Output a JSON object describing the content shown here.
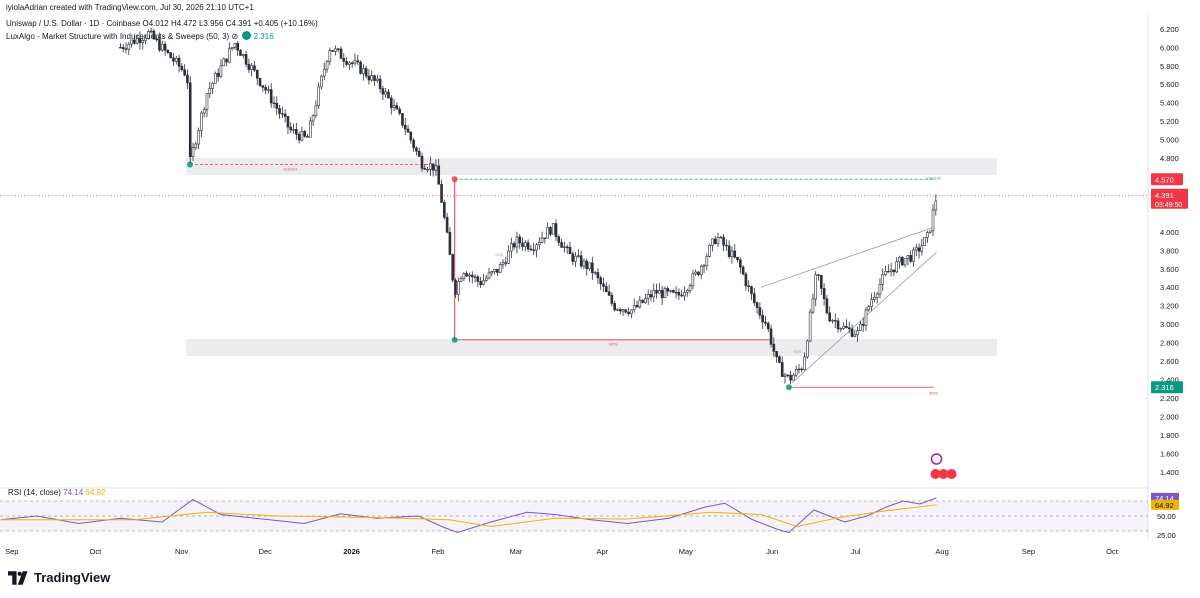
{
  "header": {
    "caption": "iyiolaAdrian created with TradingView.com, Jul 30, 2026 21:10 UTC+1",
    "symbol_line": "Uniswap / U.S. Dollar · 1D · Coinbase  O4.012  H4.472  L3.956  C4.391  +0.405 (+10.16%)",
    "indicator_line": "LuxAlgo - Market Structure with Inducements & Sweeps (50, 3)",
    "indicator_gear": "⊘",
    "indicator_value": "2.316"
  },
  "chart_data": [
    {
      "type": "candlestick",
      "title": "Uniswap / U.S. Dollar · 1D · Coinbase",
      "x_axis_ticks": [
        "Sep",
        "Oct",
        "Nov",
        "Dec",
        "2026",
        "Feb",
        "Mar",
        "Apr",
        "May",
        "Jun",
        "Jul",
        "Aug",
        "Sep",
        "Oct"
      ],
      "y_axis_ticks": [
        "6.200",
        "6.000",
        "5.800",
        "5.600",
        "5.400",
        "5.200",
        "5.000",
        "4.800",
        "4.000",
        "3.800",
        "3.600",
        "3.400",
        "3.200",
        "3.000",
        "2.800",
        "2.600",
        "2.400",
        "2.200",
        "2.000",
        "1.800",
        "1.600",
        "1.400"
      ],
      "ylim": [
        1.3,
        6.35
      ],
      "grid": false,
      "colors": {
        "up": "#089981",
        "down": "#131722",
        "candle": "#2a2e39"
      },
      "price_path": [
        [
          "2025-10-10",
          6.0
        ],
        [
          "2025-10-20",
          6.15
        ],
        [
          "2025-11-03",
          5.7
        ],
        [
          "2025-11-04",
          4.75
        ],
        [
          "2025-11-10",
          5.5
        ],
        [
          "2025-11-20",
          6.05
        ],
        [
          "2025-12-01",
          5.55
        ],
        [
          "2025-12-10",
          5.1
        ],
        [
          "2025-12-16",
          5.0
        ],
        [
          "2025-12-24",
          6.0
        ],
        [
          "2026-01-05",
          5.75
        ],
        [
          "2026-01-12",
          5.55
        ],
        [
          "2026-01-20",
          5.15
        ],
        [
          "2026-01-26",
          4.75
        ],
        [
          "2026-01-31",
          4.7
        ],
        [
          "2026-02-02",
          4.4
        ],
        [
          "2026-02-05",
          3.8
        ],
        [
          "2026-02-07",
          3.35
        ],
        [
          "2026-02-10",
          3.6
        ],
        [
          "2026-02-16",
          3.45
        ],
        [
          "2026-02-23",
          3.6
        ],
        [
          "2026-03-01",
          3.9
        ],
        [
          "2026-03-07",
          3.85
        ],
        [
          "2026-03-14",
          4.05
        ],
        [
          "2026-03-20",
          3.75
        ],
        [
          "2026-03-28",
          3.6
        ],
        [
          "2026-04-05",
          3.2
        ],
        [
          "2026-04-12",
          3.15
        ],
        [
          "2026-04-20",
          3.35
        ],
        [
          "2026-04-28",
          3.3
        ],
        [
          "2026-05-05",
          3.55
        ],
        [
          "2026-05-12",
          3.95
        ],
        [
          "2026-05-20",
          3.65
        ],
        [
          "2026-05-26",
          3.2
        ],
        [
          "2026-05-30",
          3.0
        ],
        [
          "2026-06-03",
          2.55
        ],
        [
          "2026-06-07",
          2.4
        ],
        [
          "2026-06-12",
          2.55
        ],
        [
          "2026-06-17",
          3.55
        ],
        [
          "2026-06-21",
          3.1
        ],
        [
          "2026-06-27",
          2.95
        ],
        [
          "2026-07-02",
          2.9
        ],
        [
          "2026-07-07",
          3.3
        ],
        [
          "2026-07-12",
          3.55
        ],
        [
          "2026-07-18",
          3.7
        ],
        [
          "2026-07-22",
          3.75
        ],
        [
          "2026-07-27",
          3.95
        ],
        [
          "2026-07-30",
          4.391
        ]
      ],
      "current_price": "4.391",
      "countdown": "03:49:50",
      "level_high": "4.570",
      "level_low": "2.316",
      "annotations": [
        {
          "text": "CHoCH",
          "x": "2025-12-10",
          "y": 4.7,
          "color": "#f23645"
        },
        {
          "text": "CHoCH",
          "x": "2026-07-29",
          "y": 4.6,
          "color": "#089981"
        },
        {
          "text": "BOS",
          "x": "2026-04-05",
          "y": 2.8,
          "color": "#f23645"
        },
        {
          "text": "BOS",
          "x": "2026-07-29",
          "y": 2.27,
          "color": "#f23645"
        },
        {
          "text": "SSS",
          "x": "2026-02-23",
          "y": 3.77,
          "color": "#9598a1"
        },
        {
          "text": "SSS",
          "x": "2026-06-10",
          "y": 2.72,
          "color": "#9598a1"
        }
      ]
    },
    {
      "type": "line",
      "title": "RSI (14, close)",
      "legend": [
        {
          "name": "RSI",
          "value": "74.14",
          "color": "#7e57c2"
        },
        {
          "name": "MA",
          "value": "64.92",
          "color": "#f0b400"
        }
      ],
      "y_axis_ticks": [
        "74.14",
        "64.92",
        "50.00",
        "25.00"
      ],
      "ylim": [
        18,
        82
      ],
      "bands": [
        30,
        50,
        70
      ],
      "series": [
        {
          "name": "RSI",
          "points": [
            [
              "2025-08-28",
              45
            ],
            [
              "2025-09-10",
              50
            ],
            [
              "2025-09-25",
              40
            ],
            [
              "2025-10-10",
              47
            ],
            [
              "2025-10-25",
              42
            ],
            [
              "2025-11-05",
              72
            ],
            [
              "2025-11-15",
              52
            ],
            [
              "2025-11-30",
              46
            ],
            [
              "2025-12-15",
              40
            ],
            [
              "2025-12-28",
              53
            ],
            [
              "2026-01-10",
              47
            ],
            [
              "2026-01-25",
              50
            ],
            [
              "2026-02-03",
              35
            ],
            [
              "2026-02-08",
              28
            ],
            [
              "2026-02-20",
              42
            ],
            [
              "2026-03-05",
              55
            ],
            [
              "2026-03-15",
              52
            ],
            [
              "2026-03-28",
              45
            ],
            [
              "2026-04-10",
              40
            ],
            [
              "2026-04-25",
              47
            ],
            [
              "2026-05-08",
              62
            ],
            [
              "2026-05-15",
              67
            ],
            [
              "2026-05-25",
              45
            ],
            [
              "2026-06-03",
              32
            ],
            [
              "2026-06-07",
              28
            ],
            [
              "2026-06-16",
              58
            ],
            [
              "2026-06-27",
              42
            ],
            [
              "2026-07-05",
              50
            ],
            [
              "2026-07-12",
              62
            ],
            [
              "2026-07-18",
              70
            ],
            [
              "2026-07-24",
              66
            ],
            [
              "2026-07-30",
              74.14
            ]
          ]
        },
        {
          "name": "MA",
          "points": [
            [
              "2025-08-28",
              45
            ],
            [
              "2025-10-15",
              45
            ],
            [
              "2025-11-10",
              55
            ],
            [
              "2025-12-05",
              50
            ],
            [
              "2026-01-10",
              48
            ],
            [
              "2026-02-05",
              45
            ],
            [
              "2026-02-20",
              36
            ],
            [
              "2026-03-15",
              47
            ],
            [
              "2026-04-10",
              46
            ],
            [
              "2026-05-10",
              55
            ],
            [
              "2026-05-28",
              52
            ],
            [
              "2026-06-10",
              36
            ],
            [
              "2026-06-25",
              48
            ],
            [
              "2026-07-12",
              57
            ],
            [
              "2026-07-30",
              64.92
            ]
          ]
        }
      ]
    }
  ],
  "brand": {
    "name": "TradingView"
  }
}
